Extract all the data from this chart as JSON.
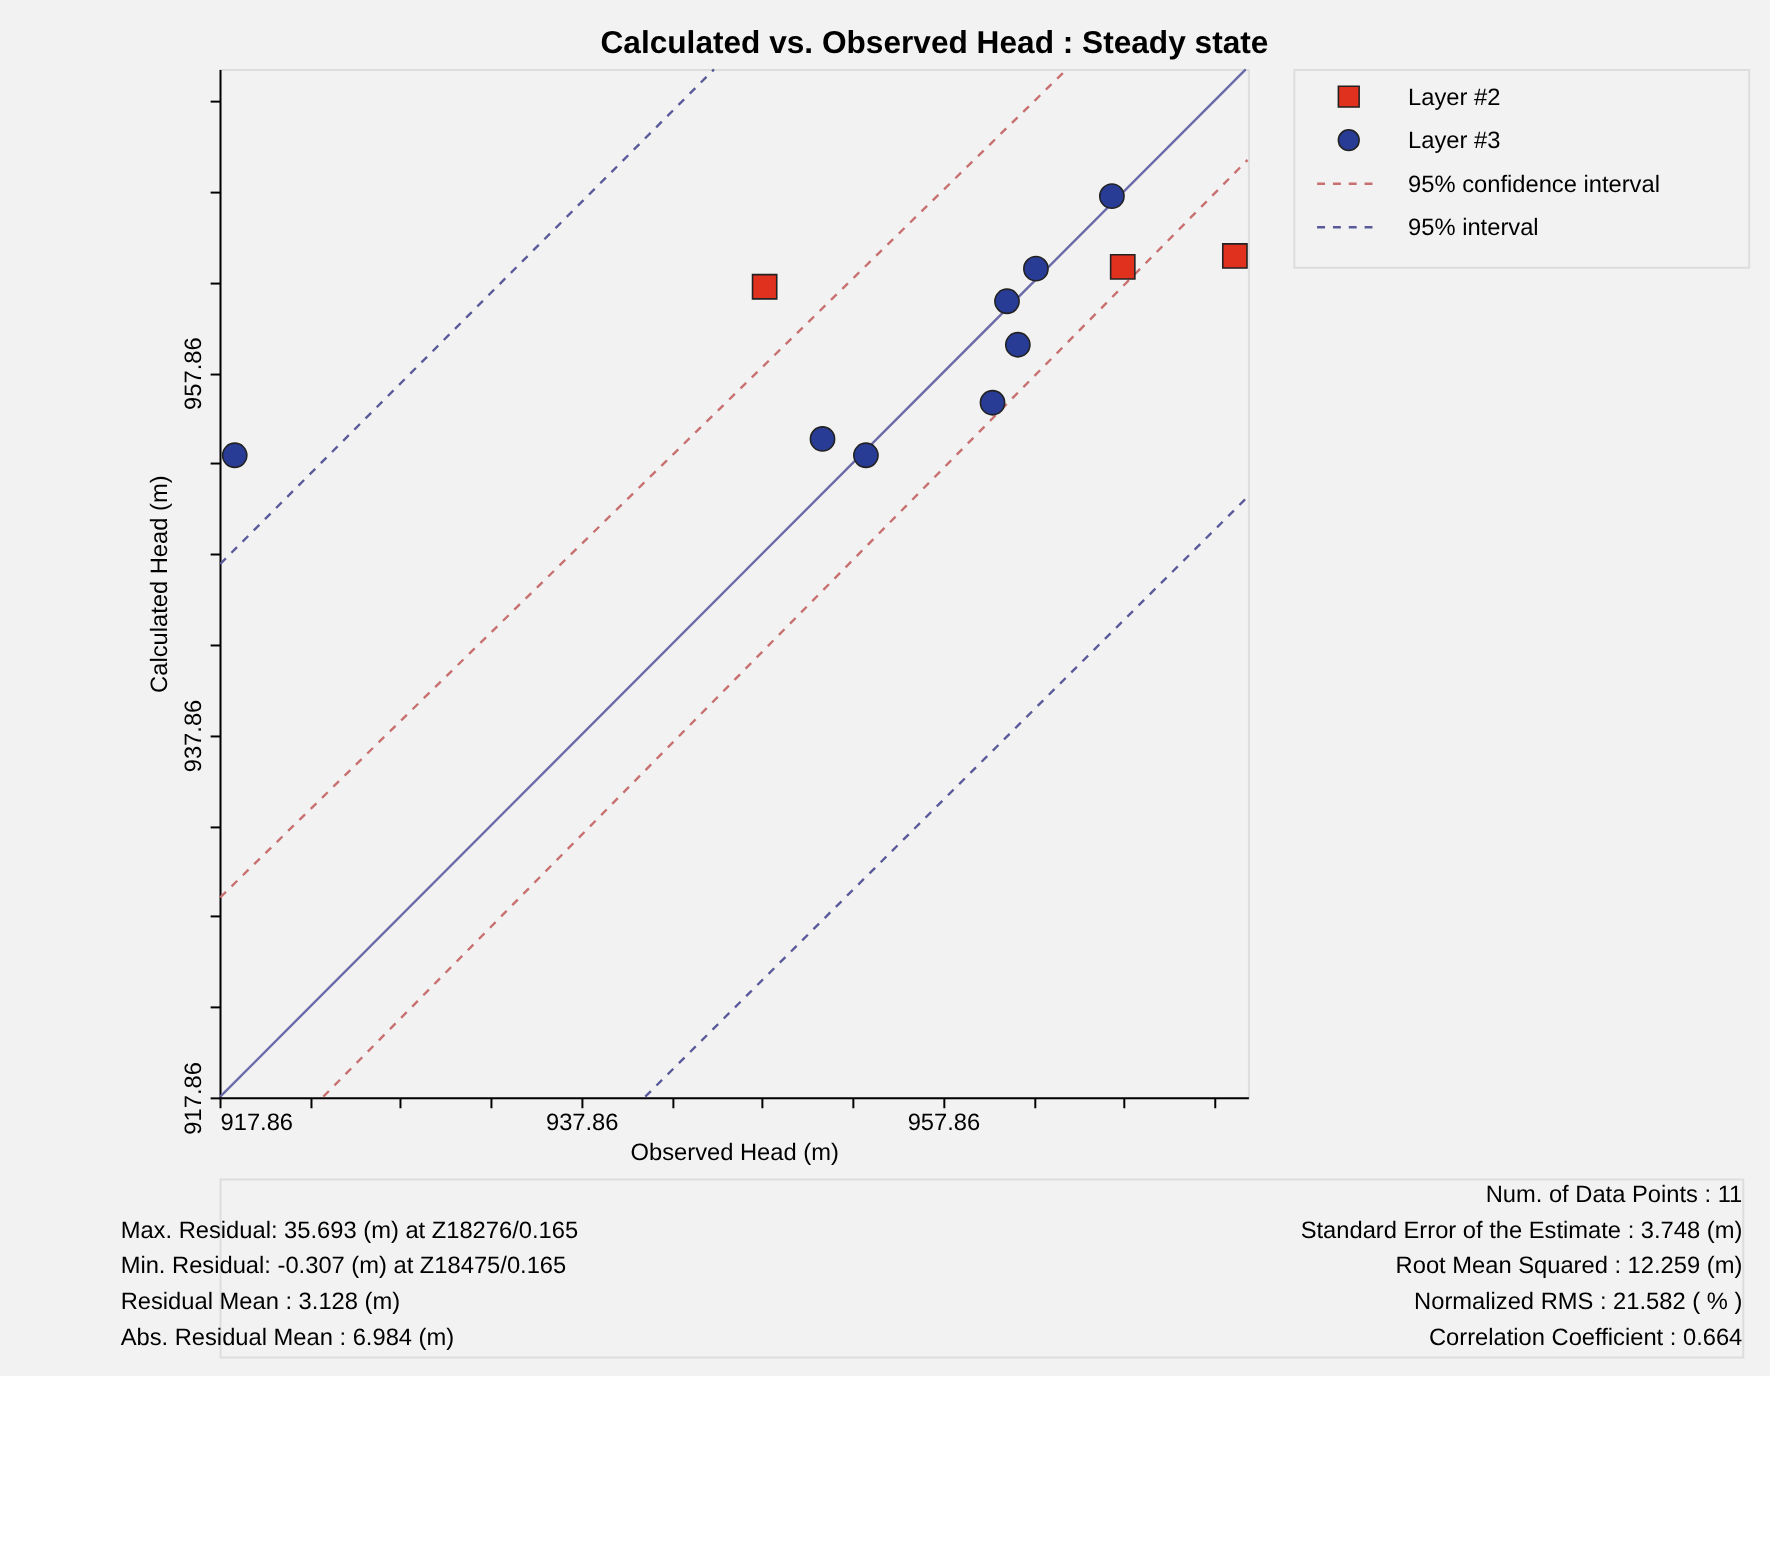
{
  "chart_data": {
    "type": "scatter",
    "title": "Calculated vs. Observed Head : Steady state",
    "xlabel": "Observed Head (m)",
    "ylabel": "Calculated Head (m)",
    "xlim": [
      917.86,
      974.72
    ],
    "ylim": [
      917.86,
      974.62
    ],
    "xticks": [
      917.86,
      {
        "value": 922.86,
        "label": null
      },
      {
        "value": 927.86,
        "label": null
      },
      {
        "value": 932.86,
        "label": null
      },
      937.86,
      {
        "value": 942.86,
        "label": null
      },
      {
        "value": 947.86,
        "label": null
      },
      {
        "value": 952.86,
        "label": null
      },
      957.86,
      {
        "value": 962.86,
        "label": null
      },
      {
        "value": 967.86,
        "label": null
      },
      {
        "value": 972.86,
        "label": null
      }
    ],
    "yticks": [
      917.86,
      {
        "value": 922.86,
        "label": null
      },
      {
        "value": 927.86,
        "label": null
      },
      {
        "value": 932.86,
        "label": null
      },
      937.86,
      {
        "value": 942.86,
        "label": null
      },
      {
        "value": 947.86,
        "label": null
      },
      {
        "value": 952.86,
        "label": null
      },
      957.86,
      {
        "value": 962.86,
        "label": null
      },
      {
        "value": 967.86,
        "label": null
      },
      {
        "value": 972.86,
        "label": null
      }
    ],
    "grid": false,
    "legend": "top right",
    "series": [
      {
        "name": "Layer #2",
        "marker": "square",
        "color": "#e0301e",
        "x": [
          948.0,
          967.8,
          974.0
        ],
        "values": [
          962.6,
          963.7,
          964.3
        ]
      },
      {
        "name": "Layer #3",
        "marker": "circle",
        "color": "#283c96",
        "x": [
          918.7,
          951.2,
          953.6,
          960.6,
          961.4,
          962.0,
          963.0,
          967.2
        ],
        "values": [
          953.3,
          954.2,
          953.3,
          956.2,
          961.8,
          959.4,
          963.6,
          967.6
        ]
      },
      {
        "type": "line",
        "line_style": "solid",
        "color": "#6a6aa8",
        "x": [
          917.9,
          974.6
        ],
        "values": [
          917.9,
          974.6
        ]
      },
      {
        "name": "95% confidence interval",
        "type": "line",
        "line_style": "dashed",
        "color": "#c87070",
        "x": [
          917.9,
          964.7
        ],
        "values": [
          928.9,
          974.6
        ]
      },
      {
        "type": "line",
        "line_style": "dashed",
        "color": "#c87070",
        "x": [
          923.6,
          974.7
        ],
        "values": [
          917.9,
          969.6
        ]
      },
      {
        "name": "95% interval",
        "type": "line",
        "line_style": "dashed",
        "color": "#5a5a9a",
        "x": [
          917.9,
          945.2
        ],
        "values": [
          947.3,
          974.6
        ]
      },
      {
        "type": "line",
        "line_style": "dashed",
        "color": "#5a5a9a",
        "x": [
          941.4,
          974.7
        ],
        "values": [
          917.9,
          951.0
        ]
      }
    ],
    "annotations": [
      "Max. Residual: 35.693 (m) at Z18276/0.165",
      "Min. Residual: -0.307 (m) at Z18475/0.165",
      "Residual Mean : 3.128 (m)",
      "Abs. Residual Mean : 6.984 (m)",
      "Num. of Data Points : 11",
      "Standard Error of the Estimate : 3.748 (m)",
      "Root Mean Squared : 12.259 (m)",
      "Normalized RMS : 21.582 ( % )",
      "Correlation Coefficient : 0.664"
    ]
  }
}
